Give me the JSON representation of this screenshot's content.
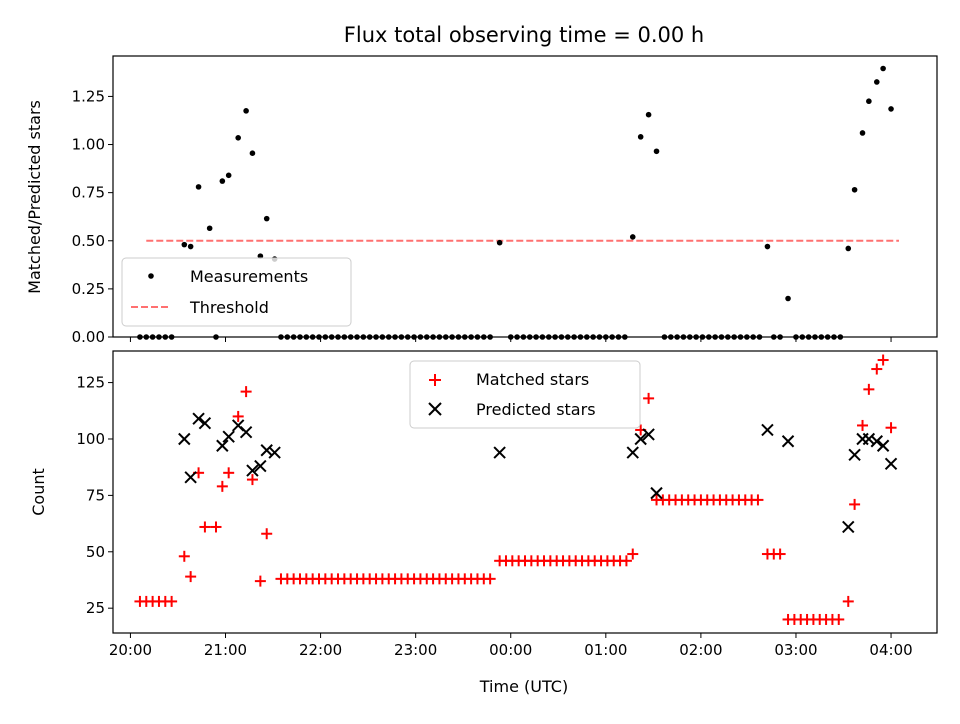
{
  "chart_data": [
    {
      "type": "scatter",
      "title": "Flux total observing time = 0.00 h",
      "xlabel": "",
      "ylabel": "Matched/Predicted stars",
      "x_unit": "time (UTC)",
      "xlim": [
        "19:49",
        "04:29"
      ],
      "ylim": [
        0,
        1.46
      ],
      "yticks": [
        0.0,
        0.25,
        0.5,
        0.75,
        1.0,
        1.25
      ],
      "ytick_labels": [
        "0.00",
        "0.25",
        "0.50",
        "0.75",
        "1.00",
        "1.25"
      ],
      "xticks": [
        "20:00",
        "21:00",
        "22:00",
        "23:00",
        "00:00",
        "01:00",
        "02:00",
        "03:00",
        "04:00"
      ],
      "show_xtick_labels": false,
      "grid": false,
      "legend": {
        "placement": "lower-left",
        "entries": [
          "Measurements",
          "Threshold"
        ]
      },
      "colors": {
        "measurements": "#000000",
        "threshold": "#ff7070"
      },
      "series": [
        {
          "name": "Measurements",
          "marker": "dot",
          "points": [
            [
              "20:06",
              0
            ],
            [
              "20:10",
              0
            ],
            [
              "20:14",
              0
            ],
            [
              "20:18",
              0
            ],
            [
              "20:22",
              0
            ],
            [
              "20:26",
              0
            ],
            [
              "20:34",
              0.48
            ],
            [
              "20:38",
              0.47
            ],
            [
              "20:43",
              0.78
            ],
            [
              "20:50",
              0.565
            ],
            [
              "20:54",
              0
            ],
            [
              "20:58",
              0.81
            ],
            [
              "21:02",
              0.84
            ],
            [
              "21:08",
              1.035
            ],
            [
              "21:13",
              1.175
            ],
            [
              "21:17",
              0.955
            ],
            [
              "21:22",
              0.42
            ],
            [
              "21:26",
              0.615
            ],
            [
              "21:31",
              0.405
            ],
            [
              "21:35",
              0
            ],
            [
              "21:39",
              0
            ],
            [
              "21:43",
              0
            ],
            [
              "21:47",
              0
            ],
            [
              "21:51",
              0
            ],
            [
              "21:55",
              0
            ],
            [
              "21:59",
              0
            ],
            [
              "22:03",
              0
            ],
            [
              "22:07",
              0
            ],
            [
              "22:11",
              0
            ],
            [
              "22:15",
              0
            ],
            [
              "22:19",
              0
            ],
            [
              "22:23",
              0
            ],
            [
              "22:27",
              0
            ],
            [
              "22:31",
              0
            ],
            [
              "22:35",
              0
            ],
            [
              "22:39",
              0
            ],
            [
              "22:43",
              0
            ],
            [
              "22:47",
              0
            ],
            [
              "22:51",
              0
            ],
            [
              "22:55",
              0
            ],
            [
              "22:59",
              0
            ],
            [
              "23:03",
              0
            ],
            [
              "23:07",
              0
            ],
            [
              "23:11",
              0
            ],
            [
              "23:15",
              0
            ],
            [
              "23:19",
              0
            ],
            [
              "23:23",
              0
            ],
            [
              "23:27",
              0
            ],
            [
              "23:31",
              0
            ],
            [
              "23:35",
              0
            ],
            [
              "23:39",
              0
            ],
            [
              "23:43",
              0
            ],
            [
              "23:47",
              0
            ],
            [
              "23:53",
              0.49
            ],
            [
              "00:00",
              0
            ],
            [
              "00:04",
              0
            ],
            [
              "00:08",
              0
            ],
            [
              "00:12",
              0
            ],
            [
              "00:16",
              0
            ],
            [
              "00:20",
              0
            ],
            [
              "00:24",
              0
            ],
            [
              "00:28",
              0
            ],
            [
              "00:32",
              0
            ],
            [
              "00:36",
              0
            ],
            [
              "00:40",
              0
            ],
            [
              "00:44",
              0
            ],
            [
              "00:48",
              0
            ],
            [
              "00:52",
              0
            ],
            [
              "00:56",
              0
            ],
            [
              "01:00",
              0
            ],
            [
              "01:04",
              0
            ],
            [
              "01:08",
              0
            ],
            [
              "01:12",
              0
            ],
            [
              "01:17",
              0.52
            ],
            [
              "01:22",
              1.04
            ],
            [
              "01:27",
              1.155
            ],
            [
              "01:32",
              0.965
            ],
            [
              "01:37",
              0
            ],
            [
              "01:41",
              0
            ],
            [
              "01:45",
              0
            ],
            [
              "01:49",
              0
            ],
            [
              "01:53",
              0
            ],
            [
              "01:57",
              0
            ],
            [
              "02:01",
              0
            ],
            [
              "02:05",
              0
            ],
            [
              "02:09",
              0
            ],
            [
              "02:13",
              0
            ],
            [
              "02:17",
              0
            ],
            [
              "02:21",
              0
            ],
            [
              "02:25",
              0
            ],
            [
              "02:29",
              0
            ],
            [
              "02:33",
              0
            ],
            [
              "02:37",
              0
            ],
            [
              "02:42",
              0.47
            ],
            [
              "02:46",
              0
            ],
            [
              "02:50",
              0
            ],
            [
              "02:55",
              0.2
            ],
            [
              "03:00",
              0
            ],
            [
              "03:04",
              0
            ],
            [
              "03:08",
              0
            ],
            [
              "03:12",
              0
            ],
            [
              "03:16",
              0
            ],
            [
              "03:20",
              0
            ],
            [
              "03:24",
              0
            ],
            [
              "03:28",
              0
            ],
            [
              "03:33",
              0.46
            ],
            [
              "03:37",
              0.765
            ],
            [
              "03:42",
              1.06
            ],
            [
              "03:46",
              1.225
            ],
            [
              "03:51",
              1.325
            ],
            [
              "03:55",
              1.395
            ],
            [
              "04:00",
              1.185
            ]
          ]
        },
        {
          "name": "Threshold",
          "marker": "dashed-line",
          "points": [
            [
              "20:10",
              0.5
            ],
            [
              "04:05",
              0.5
            ]
          ]
        }
      ]
    },
    {
      "type": "scatter",
      "title": "",
      "xlabel": "Time (UTC)",
      "ylabel": "Count",
      "xlim": [
        "19:49",
        "04:29"
      ],
      "ylim": [
        14,
        139
      ],
      "yticks": [
        25,
        50,
        75,
        100,
        125
      ],
      "ytick_labels": [
        "25",
        "50",
        "75",
        "100",
        "125"
      ],
      "xticks": [
        "20:00",
        "21:00",
        "22:00",
        "23:00",
        "00:00",
        "01:00",
        "02:00",
        "03:00",
        "04:00"
      ],
      "xtick_labels": [
        "20:00",
        "21:00",
        "22:00",
        "23:00",
        "00:00",
        "01:00",
        "02:00",
        "03:00",
        "04:00"
      ],
      "grid": false,
      "legend": {
        "placement": "upper-center",
        "entries": [
          "Matched stars",
          "Predicted stars"
        ]
      },
      "colors": {
        "matched": "#ff0000",
        "predicted": "#000000"
      },
      "series": [
        {
          "name": "Matched stars",
          "marker": "plus",
          "points": [
            [
              "20:06",
              28
            ],
            [
              "20:10",
              28
            ],
            [
              "20:14",
              28
            ],
            [
              "20:18",
              28
            ],
            [
              "20:22",
              28
            ],
            [
              "20:26",
              28
            ],
            [
              "20:34",
              48
            ],
            [
              "20:38",
              39
            ],
            [
              "20:43",
              85
            ],
            [
              "20:47",
              61
            ],
            [
              "20:54",
              61
            ],
            [
              "20:58",
              79
            ],
            [
              "21:02",
              85
            ],
            [
              "21:08",
              110
            ],
            [
              "21:13",
              121
            ],
            [
              "21:17",
              82
            ],
            [
              "21:22",
              37
            ],
            [
              "21:26",
              58
            ],
            [
              "21:35",
              38
            ],
            [
              "21:39",
              38
            ],
            [
              "21:43",
              38
            ],
            [
              "21:47",
              38
            ],
            [
              "21:51",
              38
            ],
            [
              "21:55",
              38
            ],
            [
              "21:59",
              38
            ],
            [
              "22:03",
              38
            ],
            [
              "22:07",
              38
            ],
            [
              "22:11",
              38
            ],
            [
              "22:15",
              38
            ],
            [
              "22:19",
              38
            ],
            [
              "22:23",
              38
            ],
            [
              "22:27",
              38
            ],
            [
              "22:31",
              38
            ],
            [
              "22:35",
              38
            ],
            [
              "22:39",
              38
            ],
            [
              "22:43",
              38
            ],
            [
              "22:47",
              38
            ],
            [
              "22:51",
              38
            ],
            [
              "22:55",
              38
            ],
            [
              "22:59",
              38
            ],
            [
              "23:03",
              38
            ],
            [
              "23:07",
              38
            ],
            [
              "23:11",
              38
            ],
            [
              "23:15",
              38
            ],
            [
              "23:19",
              38
            ],
            [
              "23:23",
              38
            ],
            [
              "23:27",
              38
            ],
            [
              "23:31",
              38
            ],
            [
              "23:35",
              38
            ],
            [
              "23:39",
              38
            ],
            [
              "23:43",
              38
            ],
            [
              "23:47",
              38
            ],
            [
              "23:53",
              46
            ],
            [
              "23:57",
              46
            ],
            [
              "00:01",
              46
            ],
            [
              "00:05",
              46
            ],
            [
              "00:09",
              46
            ],
            [
              "00:13",
              46
            ],
            [
              "00:17",
              46
            ],
            [
              "00:21",
              46
            ],
            [
              "00:25",
              46
            ],
            [
              "00:29",
              46
            ],
            [
              "00:33",
              46
            ],
            [
              "00:37",
              46
            ],
            [
              "00:41",
              46
            ],
            [
              "00:45",
              46
            ],
            [
              "00:49",
              46
            ],
            [
              "00:53",
              46
            ],
            [
              "00:57",
              46
            ],
            [
              "01:01",
              46
            ],
            [
              "01:05",
              46
            ],
            [
              "01:09",
              46
            ],
            [
              "01:13",
              46
            ],
            [
              "01:17",
              49
            ],
            [
              "01:22",
              104
            ],
            [
              "01:27",
              118
            ],
            [
              "01:32",
              73
            ],
            [
              "01:36",
              73
            ],
            [
              "01:40",
              73
            ],
            [
              "01:44",
              73
            ],
            [
              "01:48",
              73
            ],
            [
              "01:52",
              73
            ],
            [
              "01:56",
              73
            ],
            [
              "02:00",
              73
            ],
            [
              "02:04",
              73
            ],
            [
              "02:08",
              73
            ],
            [
              "02:12",
              73
            ],
            [
              "02:16",
              73
            ],
            [
              "02:20",
              73
            ],
            [
              "02:24",
              73
            ],
            [
              "02:28",
              73
            ],
            [
              "02:32",
              73
            ],
            [
              "02:36",
              73
            ],
            [
              "02:42",
              49
            ],
            [
              "02:46",
              49
            ],
            [
              "02:50",
              49
            ],
            [
              "02:55",
              20
            ],
            [
              "02:59",
              20
            ],
            [
              "03:03",
              20
            ],
            [
              "03:07",
              20
            ],
            [
              "03:11",
              20
            ],
            [
              "03:15",
              20
            ],
            [
              "03:19",
              20
            ],
            [
              "03:23",
              20
            ],
            [
              "03:27",
              20
            ],
            [
              "03:33",
              28
            ],
            [
              "03:37",
              71
            ],
            [
              "03:42",
              106
            ],
            [
              "03:46",
              122
            ],
            [
              "03:51",
              131
            ],
            [
              "03:55",
              135
            ],
            [
              "04:00",
              105
            ]
          ]
        },
        {
          "name": "Predicted stars",
          "marker": "x",
          "points": [
            [
              "20:34",
              100
            ],
            [
              "20:38",
              83
            ],
            [
              "20:43",
              109
            ],
            [
              "20:47",
              107
            ],
            [
              "20:58",
              97
            ],
            [
              "21:02",
              101
            ],
            [
              "21:08",
              106
            ],
            [
              "21:13",
              103
            ],
            [
              "21:17",
              86
            ],
            [
              "21:22",
              88
            ],
            [
              "21:26",
              95
            ],
            [
              "21:31",
              94
            ],
            [
              "23:53",
              94
            ],
            [
              "01:17",
              94
            ],
            [
              "01:22",
              100
            ],
            [
              "01:27",
              102
            ],
            [
              "01:32",
              76
            ],
            [
              "02:42",
              104
            ],
            [
              "02:55",
              99
            ],
            [
              "03:33",
              61
            ],
            [
              "03:37",
              93
            ],
            [
              "03:42",
              100
            ],
            [
              "03:46",
              100
            ],
            [
              "03:51",
              99
            ],
            [
              "03:55",
              97
            ],
            [
              "04:00",
              89
            ]
          ]
        }
      ]
    }
  ]
}
